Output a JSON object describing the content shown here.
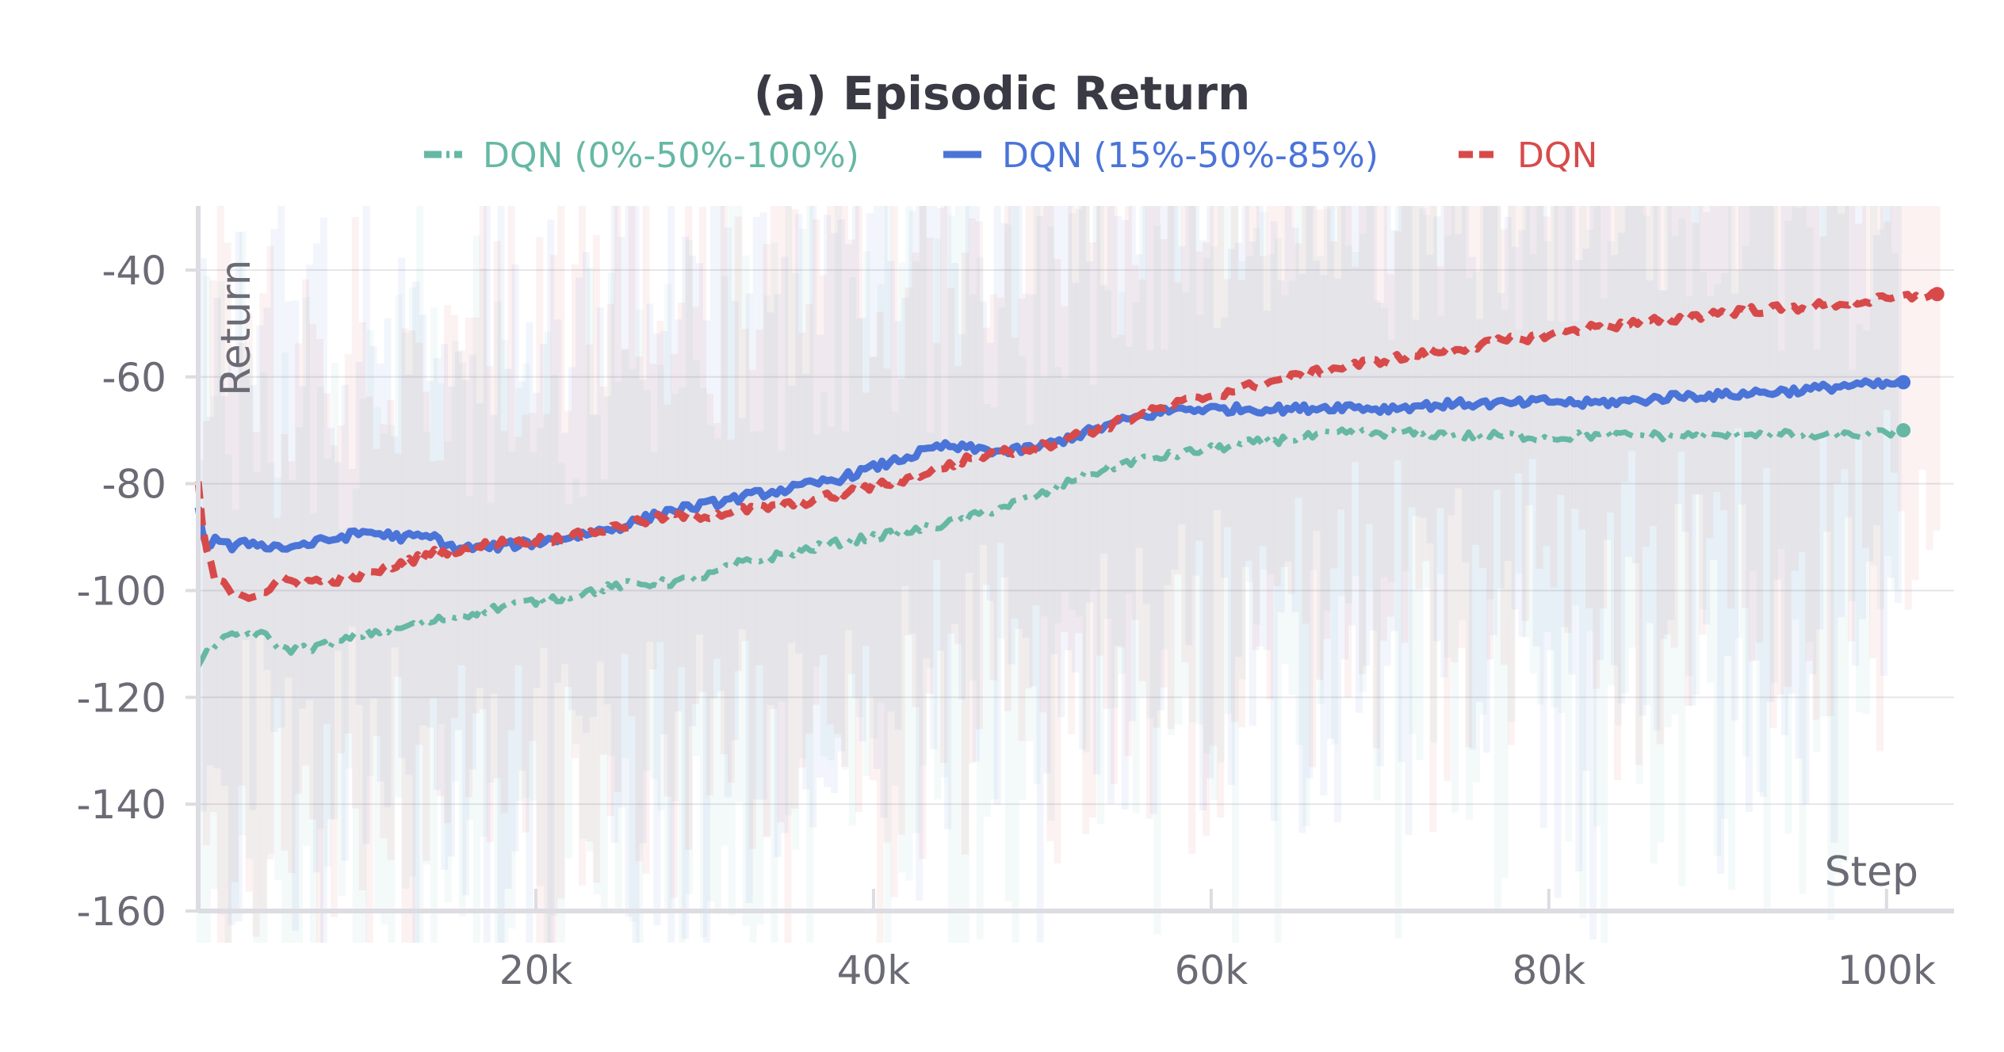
{
  "chart_data": {
    "type": "line",
    "title": "(a) Episodic Return",
    "xlabel": "Step",
    "ylabel": "Return",
    "xlim": [
      0,
      104000
    ],
    "ylim": [
      -160,
      -28
    ],
    "x_ticks": [
      20000,
      40000,
      60000,
      80000,
      100000
    ],
    "x_tick_labels": [
      "20k",
      "40k",
      "60k",
      "80k",
      "100k"
    ],
    "y_ticks": [
      -40,
      -60,
      -80,
      -100,
      -120,
      -140,
      -160
    ],
    "y_tick_labels": [
      "-40",
      "-60",
      "-80",
      "-100",
      "-120",
      "-140",
      "-160"
    ],
    "grid": true,
    "legend_position": "top-center",
    "series": [
      {
        "name": "DQN (0%-50%-100%)",
        "color": "#66b8a4",
        "style": "dash-dot",
        "x": [
          0,
          1000,
          2500,
          4000,
          5000,
          6000,
          8000,
          10000,
          12000,
          15000,
          18000,
          20000,
          22000,
          25000,
          28000,
          30000,
          32000,
          35000,
          38000,
          40000,
          42000,
          45000,
          48000,
          50000,
          52000,
          55000,
          58000,
          60000,
          62000,
          65000,
          68000,
          70000,
          72000,
          75000,
          78000,
          80000,
          82000,
          85000,
          88000,
          90000,
          92000,
          95000,
          98000,
          100000,
          101000
        ],
        "values": [
          -114,
          -110,
          -108,
          -108.5,
          -111,
          -111,
          -110,
          -108,
          -107,
          -105,
          -103,
          -102,
          -101,
          -99,
          -98.5,
          -97.5,
          -95,
          -93,
          -91,
          -90,
          -89,
          -87,
          -84,
          -82,
          -79,
          -76,
          -74.5,
          -73.5,
          -72.5,
          -71.5,
          -70.5,
          -70.5,
          -70.5,
          -71,
          -71,
          -71.5,
          -71,
          -71,
          -71,
          -71,
          -70.5,
          -71,
          -71,
          -70.5,
          -70
        ]
      },
      {
        "name": "DQN (15%-50%-85%)",
        "color": "#4a74d8",
        "style": "solid",
        "x": [
          0,
          500,
          1000,
          2000,
          3000,
          5000,
          7000,
          10000,
          12000,
          14000,
          15000,
          17000,
          20000,
          22000,
          25000,
          28000,
          30000,
          33000,
          35000,
          38000,
          40000,
          42000,
          44000,
          46000,
          48000,
          50000,
          52000,
          55000,
          58000,
          60000,
          62000,
          65000,
          68000,
          70000,
          72000,
          75000,
          78000,
          80000,
          82000,
          85000,
          88000,
          90000,
          92000,
          95000,
          98000,
          100000,
          101000
        ],
        "values": [
          -85,
          -92,
          -90,
          -92,
          -91,
          -92,
          -91,
          -89,
          -90,
          -90,
          -92,
          -92,
          -91,
          -90,
          -88,
          -85,
          -84,
          -82,
          -81,
          -79,
          -77,
          -75,
          -73,
          -73.5,
          -74,
          -73,
          -71,
          -68,
          -66,
          -66,
          -66,
          -66,
          -65.5,
          -66,
          -65.5,
          -65,
          -65,
          -64.5,
          -65,
          -64.5,
          -63.5,
          -63.5,
          -63,
          -62.5,
          -61.5,
          -61.5,
          -61
        ]
      },
      {
        "name": "DQN",
        "color": "#d84a4a",
        "style": "dash",
        "x": [
          0,
          300,
          1000,
          2000,
          3000,
          4000,
          5000,
          6000,
          8000,
          10000,
          12000,
          14000,
          16000,
          18000,
          20000,
          22000,
          25000,
          28000,
          30000,
          32000,
          35000,
          38000,
          40000,
          42000,
          44000,
          46000,
          48000,
          50000,
          52000,
          55000,
          58000,
          60000,
          62000,
          65000,
          68000,
          70000,
          72000,
          75000,
          78000,
          80000,
          82000,
          85000,
          88000,
          90000,
          92000,
          95000,
          98000,
          100000,
          103000
        ],
        "values": [
          -80,
          -90,
          -98,
          -100,
          -101,
          -100,
          -98,
          -98.5,
          -98,
          -97,
          -95,
          -93,
          -92,
          -91,
          -90.5,
          -90,
          -88,
          -86,
          -86,
          -85,
          -84,
          -82,
          -80.5,
          -79,
          -77,
          -75,
          -74,
          -73,
          -71,
          -68,
          -65,
          -63.5,
          -62,
          -60,
          -58,
          -57,
          -56,
          -54.5,
          -53,
          -52,
          -51,
          -50,
          -49,
          -48,
          -47.5,
          -47,
          -46,
          -45.5,
          -44.5
        ]
      }
    ]
  },
  "legend": [
    {
      "label": "DQN (0%-50%-100%)",
      "color": "#66b8a4"
    },
    {
      "label": "DQN (15%-50%-85%)",
      "color": "#4a74d8"
    },
    {
      "label": "DQN",
      "color": "#d84a4a"
    }
  ]
}
